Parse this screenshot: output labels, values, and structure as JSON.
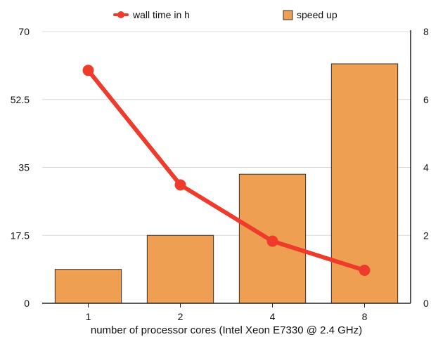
{
  "chart_data": {
    "type": "bar",
    "title": "",
    "categories": [
      "1",
      "2",
      "4",
      "8"
    ],
    "xlabel": "number of processor cores (Intel Xeon E7330 @ 2.4 GHz)",
    "series": [
      {
        "name": "speed up",
        "type": "bar",
        "axis": "right",
        "values": [
          1,
          2,
          3.8,
          7.05
        ]
      },
      {
        "name": "wall time in h",
        "type": "line",
        "axis": "left",
        "values": [
          60,
          30.5,
          16,
          8.5
        ]
      }
    ],
    "left_axis": {
      "ylim": [
        0,
        70
      ],
      "ticks": [
        "0",
        "17.5",
        "35",
        "52.5",
        "70"
      ]
    },
    "right_axis": {
      "ylim": [
        0,
        8
      ],
      "ticks": [
        "0",
        "2",
        "4",
        "6",
        "8"
      ]
    },
    "grid": true,
    "legend_position": "top",
    "colors": {
      "bar_fill": "#EE9F52",
      "bar_stroke": "#333333",
      "line": "#EE3B2B",
      "grid": "#d9d9d9",
      "axis": "#222222"
    }
  }
}
